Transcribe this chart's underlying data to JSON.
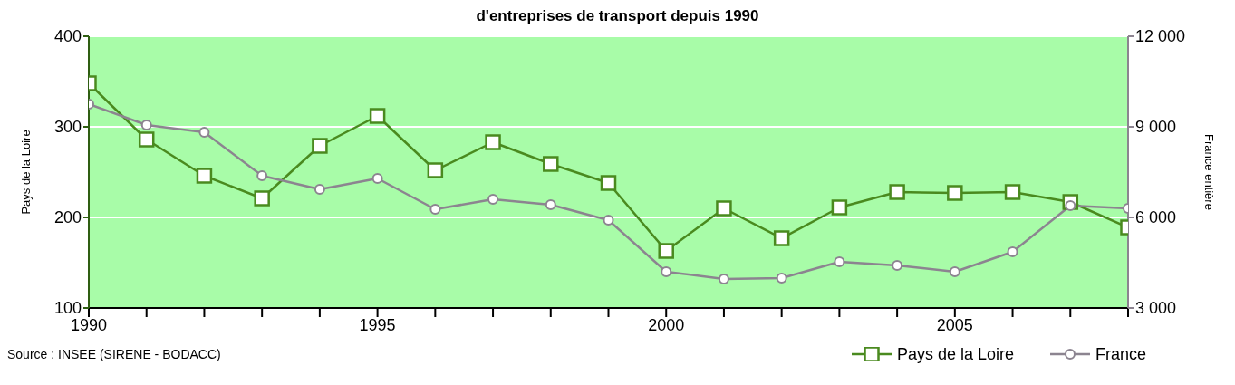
{
  "chart_data": {
    "type": "line",
    "title": "d'entreprises de transport depuis 1990",
    "ylabel": "Pays de la Loire",
    "y2label": "France entière",
    "annotations": [
      "Source : INSEE (SIRENE - BODACC)"
    ],
    "x": [
      1990,
      1991,
      1992,
      1993,
      1994,
      1995,
      1996,
      1997,
      1998,
      1999,
      2000,
      2001,
      2002,
      2003,
      2004,
      2005,
      2006,
      2007,
      2008
    ],
    "series": [
      {
        "name": "Pays de la Loire",
        "color": "#4a8a1f",
        "marker": "square",
        "values": [
          348,
          286,
          246,
          221,
          279,
          312,
          252,
          283,
          259,
          238,
          163,
          210,
          177,
          211,
          228,
          227,
          228,
          217,
          189
        ]
      },
      {
        "name": "France",
        "color": "#8c8490",
        "marker": "circle",
        "axis": "y2",
        "values": [
          9750,
          9060,
          8820,
          7380,
          6930,
          7290,
          6270,
          6600,
          6420,
          5910,
          4200,
          3960,
          3990,
          4530,
          4410,
          4200,
          4860,
          6390,
          6300
        ]
      }
    ],
    "xlim": [
      1990,
      2008
    ],
    "xticks": [
      1990,
      {
        "value": 1991,
        "label": null
      },
      {
        "value": 1992,
        "label": null
      },
      {
        "value": 1993,
        "label": null
      },
      {
        "value": 1994,
        "label": null
      },
      1995,
      {
        "value": 1996,
        "label": null
      },
      {
        "value": 1997,
        "label": null
      },
      {
        "value": 1998,
        "label": null
      },
      {
        "value": 1999,
        "label": null
      },
      2000,
      {
        "value": 2001,
        "label": null
      },
      {
        "value": 2002,
        "label": null
      },
      {
        "value": 2003,
        "label": null
      },
      {
        "value": 2004,
        "label": null
      },
      2005,
      {
        "value": 2006,
        "label": null
      },
      {
        "value": 2007,
        "label": null
      },
      {
        "value": 2008,
        "label": null
      }
    ],
    "ylim": [
      100,
      400
    ],
    "yticks": [
      100,
      200,
      300,
      400
    ],
    "y2lim": [
      3000,
      12000
    ],
    "y2ticks": [
      {
        "value": 3000,
        "label": "3 000"
      },
      {
        "value": 6000,
        "label": "6 000"
      },
      {
        "value": 9000,
        "label": "9 000"
      },
      {
        "value": 12000,
        "label": "12 000"
      }
    ],
    "grid": "y",
    "legend": "bottom right",
    "line_style": "solid"
  }
}
